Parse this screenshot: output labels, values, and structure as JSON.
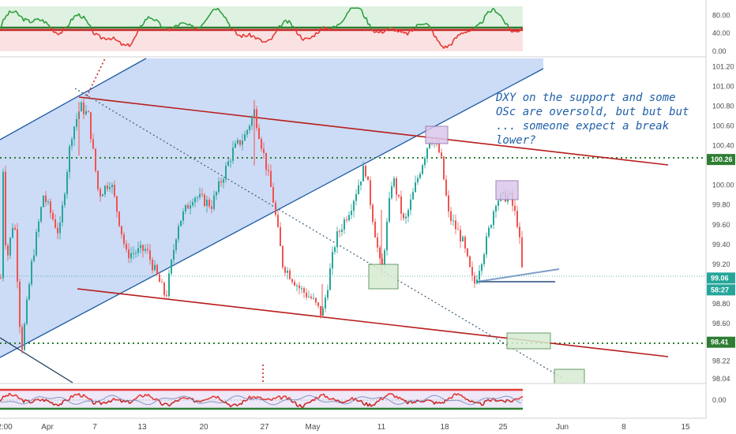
{
  "chart_data": {
    "type": "candlestick",
    "main_panel": {
      "y_ticks": [
        "101.20",
        "101.00",
        "100.80",
        "100.60",
        "100.40",
        "100.26",
        "100.00",
        "99.80",
        "99.60",
        "99.40",
        "99.20",
        "99.06",
        "98.80",
        "98.60",
        "98.41",
        "98.22",
        "98.04"
      ],
      "ylim": [
        98.04,
        101.22
      ],
      "x_ticks": [
        "2:00",
        "Apr",
        "7",
        "13",
        "20",
        "27",
        "May",
        "11",
        "18",
        "25",
        "Jun",
        "8",
        "15"
      ],
      "price_labels": [
        {
          "value": 100.26,
          "text": "100.26",
          "color": "#2e7d32"
        },
        {
          "value": 99.06,
          "text": "99.06",
          "color": "#26a69a"
        },
        {
          "value": 98.94,
          "text": "58:27",
          "color": "#26a69a"
        },
        {
          "value": 98.41,
          "text": "98.41",
          "color": "#2e7d32"
        }
      ],
      "horizontal_levels": [
        100.26,
        98.41,
        99.06
      ],
      "annotation": "DXY on the support and some\nOSc are oversold, but but but\n... someone expect a break\nlower?",
      "ohlc_summary": {
        "open_high": 100.84,
        "april_low": 98.28,
        "mid_april_low": 98.84,
        "late_april_high": 100.86,
        "may_low": 98.66,
        "mid_may_high": 100.56,
        "late_may_low": 98.96,
        "late_may_high": 99.98,
        "last": 99.06
      }
    },
    "top_oscillator": {
      "y_ticks": [
        "80.00",
        "40.00",
        "0.00"
      ],
      "ylim": [
        0,
        100
      ],
      "levels": [
        50,
        54
      ]
    },
    "bottom_oscillator": {
      "y_ticks": [
        "0.00"
      ]
    },
    "colors": {
      "up": "#26a69a",
      "down": "#ef5350",
      "channel": "#1c5ba3",
      "channel_fill": "#c9d9f5",
      "trend": "#b71c1c",
      "level": "#2e7d32"
    }
  }
}
